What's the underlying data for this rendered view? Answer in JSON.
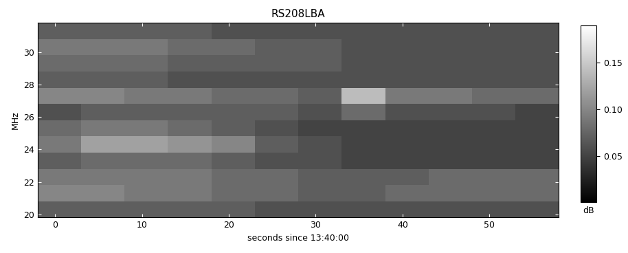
{
  "chart_data": {
    "type": "heatmap",
    "title": "RS208LBA",
    "x_label": "seconds since 13:40:00",
    "y_label": "MHz",
    "x_edges": [
      -2,
      3,
      8,
      13,
      18,
      23,
      28,
      33,
      38,
      43,
      48,
      53,
      58
    ],
    "y_edges": [
      19.8,
      20.8,
      21.8,
      22.8,
      23.8,
      24.8,
      25.8,
      26.8,
      27.8,
      28.8,
      29.8,
      30.8,
      31.8
    ],
    "cells": [
      [
        0.07,
        0.07,
        0.07,
        0.07,
        0.07,
        0.06,
        0.06,
        0.06,
        0.06,
        0.06,
        0.06,
        0.06
      ],
      [
        0.1,
        0.1,
        0.09,
        0.09,
        0.08,
        0.08,
        0.07,
        0.07,
        0.08,
        0.08,
        0.08,
        0.08
      ],
      [
        0.09,
        0.09,
        0.09,
        0.09,
        0.08,
        0.08,
        0.07,
        0.07,
        0.07,
        0.08,
        0.08,
        0.08
      ],
      [
        0.07,
        0.08,
        0.08,
        0.08,
        0.07,
        0.06,
        0.06,
        0.05,
        0.05,
        0.05,
        0.05,
        0.05
      ],
      [
        0.09,
        0.12,
        0.12,
        0.11,
        0.1,
        0.07,
        0.06,
        0.05,
        0.05,
        0.05,
        0.05,
        0.05
      ],
      [
        0.08,
        0.09,
        0.09,
        0.08,
        0.07,
        0.06,
        0.05,
        0.05,
        0.05,
        0.05,
        0.05,
        0.05
      ],
      [
        0.06,
        0.07,
        0.07,
        0.07,
        0.07,
        0.07,
        0.06,
        0.08,
        0.06,
        0.06,
        0.06,
        0.05
      ],
      [
        0.1,
        0.1,
        0.09,
        0.09,
        0.08,
        0.08,
        0.07,
        0.14,
        0.09,
        0.09,
        0.08,
        0.08
      ],
      [
        0.07,
        0.07,
        0.07,
        0.06,
        0.06,
        0.06,
        0.06,
        0.06,
        0.06,
        0.06,
        0.06,
        0.06
      ],
      [
        0.08,
        0.08,
        0.08,
        0.07,
        0.07,
        0.07,
        0.07,
        0.06,
        0.06,
        0.06,
        0.06,
        0.06
      ],
      [
        0.09,
        0.09,
        0.09,
        0.08,
        0.08,
        0.07,
        0.07,
        0.06,
        0.06,
        0.06,
        0.06,
        0.06
      ],
      [
        0.07,
        0.07,
        0.07,
        0.07,
        0.06,
        0.06,
        0.06,
        0.06,
        0.06,
        0.06,
        0.06,
        0.06
      ]
    ],
    "color": "gray",
    "xlim": [
      -2,
      58
    ],
    "xticks": [
      0,
      10,
      20,
      30,
      40,
      50
    ],
    "ylim": [
      19.8,
      31.8
    ],
    "yticks": [
      20,
      22,
      24,
      26,
      28,
      30
    ],
    "colorbar_label": "dB",
    "colorbar_range": [
      0,
      0.19
    ],
    "colorbar_ticks": [
      0.05,
      {
        "value": 0.1,
        "label": "0.10"
      },
      0.15
    ]
  }
}
